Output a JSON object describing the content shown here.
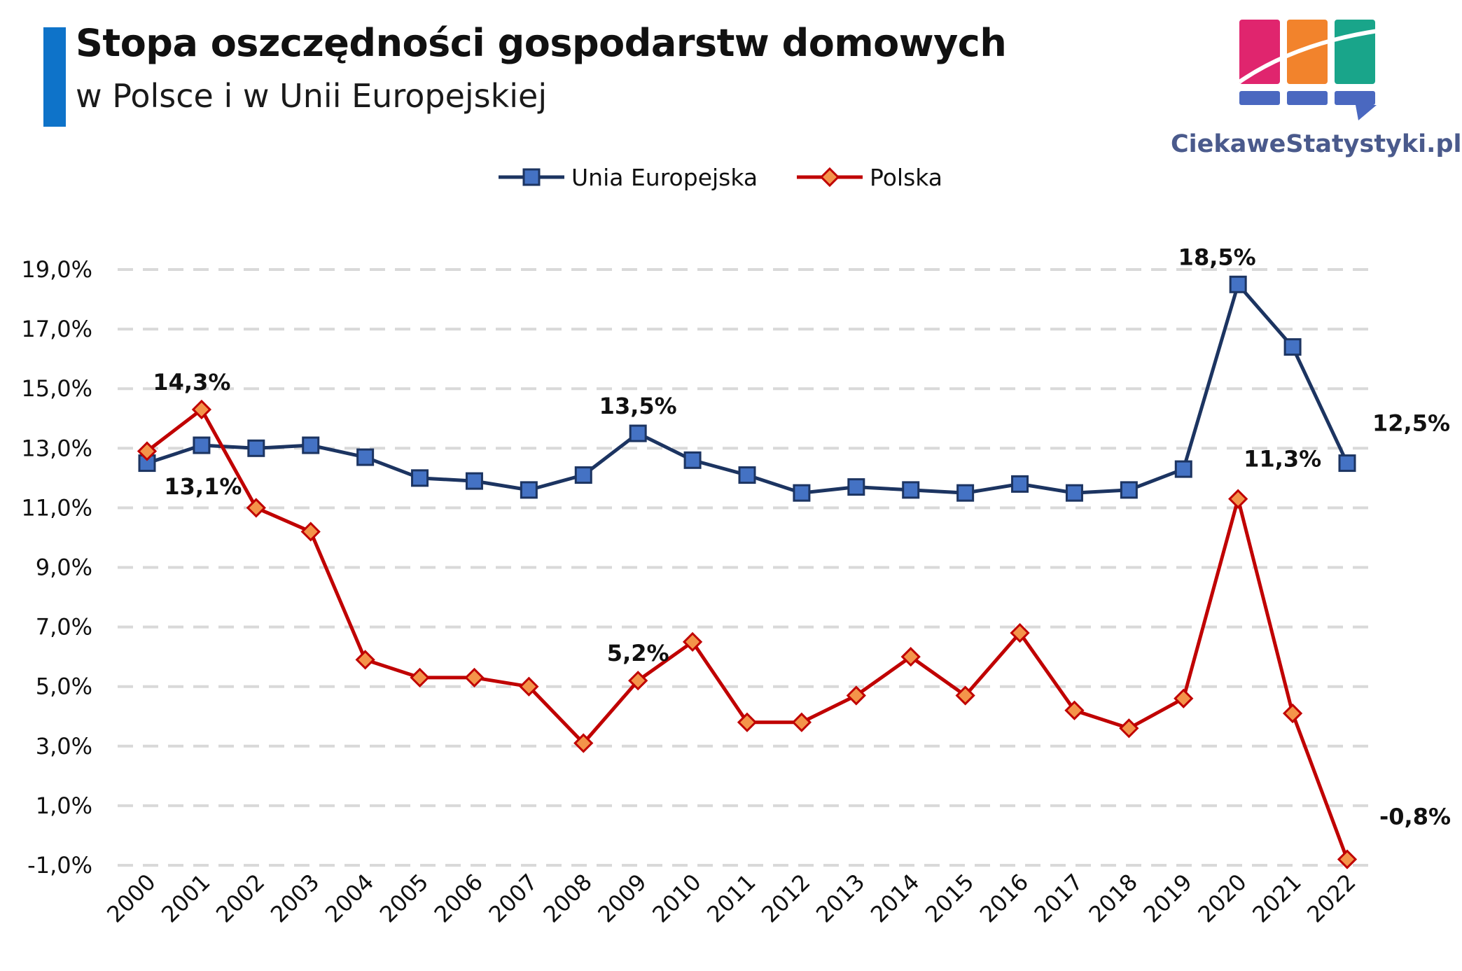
{
  "header": {
    "title": "Stopa oszczędności gospodarstw domowych",
    "subtitle": "w Polsce i w Unii Europejskiej"
  },
  "logo": {
    "text": "CiekaweStatystyki.pl",
    "colors": [
      "#e0256e",
      "#f2832c",
      "#19a58a",
      "#4a68c0"
    ]
  },
  "chart_data": {
    "type": "line",
    "title": "Stopa oszczędności gospodarstw domowych",
    "subtitle": "w Polsce i w Unii Europejskiej",
    "x": [
      "2000",
      "2001",
      "2002",
      "2003",
      "2004",
      "2005",
      "2006",
      "2007",
      "2008",
      "2009",
      "2010",
      "2011",
      "2012",
      "2013",
      "2014",
      "2015",
      "2016",
      "2017",
      "2018",
      "2019",
      "2020",
      "2021",
      "2022"
    ],
    "y_ticks": [
      "-1,0%",
      "1,0%",
      "3,0%",
      "5,0%",
      "7,0%",
      "9,0%",
      "11,0%",
      "13,0%",
      "15,0%",
      "17,0%",
      "19,0%"
    ],
    "ylim": [
      -1,
      19
    ],
    "grid": true,
    "legend_position": "top-center",
    "series": [
      {
        "name": "Unia Europejska",
        "color": "#1c3461",
        "marker": "square",
        "marker_fill": "#4472c4",
        "values": [
          12.5,
          13.1,
          13.0,
          13.1,
          12.7,
          12.0,
          11.9,
          11.6,
          12.1,
          13.5,
          12.6,
          12.1,
          11.5,
          11.7,
          11.6,
          11.5,
          11.8,
          11.5,
          11.6,
          12.3,
          18.5,
          16.4,
          12.5
        ]
      },
      {
        "name": "Polska",
        "color": "#c00000",
        "marker": "diamond",
        "marker_fill": "#f4944a",
        "values": [
          12.9,
          14.3,
          11.0,
          10.2,
          5.9,
          5.3,
          5.3,
          5.0,
          3.1,
          5.2,
          6.5,
          3.8,
          3.8,
          4.7,
          6.0,
          4.7,
          6.8,
          4.2,
          3.6,
          4.6,
          11.3,
          4.1,
          -0.8
        ]
      }
    ],
    "annotations": [
      {
        "series": 1,
        "index": 1,
        "text": "14,3%",
        "pos": "above"
      },
      {
        "series": 0,
        "index": 1,
        "text": "13,1%",
        "pos": "below-left"
      },
      {
        "series": 0,
        "index": 9,
        "text": "13,5%",
        "pos": "above"
      },
      {
        "series": 1,
        "index": 9,
        "text": "5,2%",
        "pos": "above"
      },
      {
        "series": 0,
        "index": 20,
        "text": "18,5%",
        "pos": "above"
      },
      {
        "series": 1,
        "index": 20,
        "text": "11,3%",
        "pos": "above-right"
      },
      {
        "series": 0,
        "index": 22,
        "text": "12,5%",
        "pos": "above-right"
      },
      {
        "series": 1,
        "index": 22,
        "text": "-0,8%",
        "pos": "above-right"
      }
    ]
  }
}
